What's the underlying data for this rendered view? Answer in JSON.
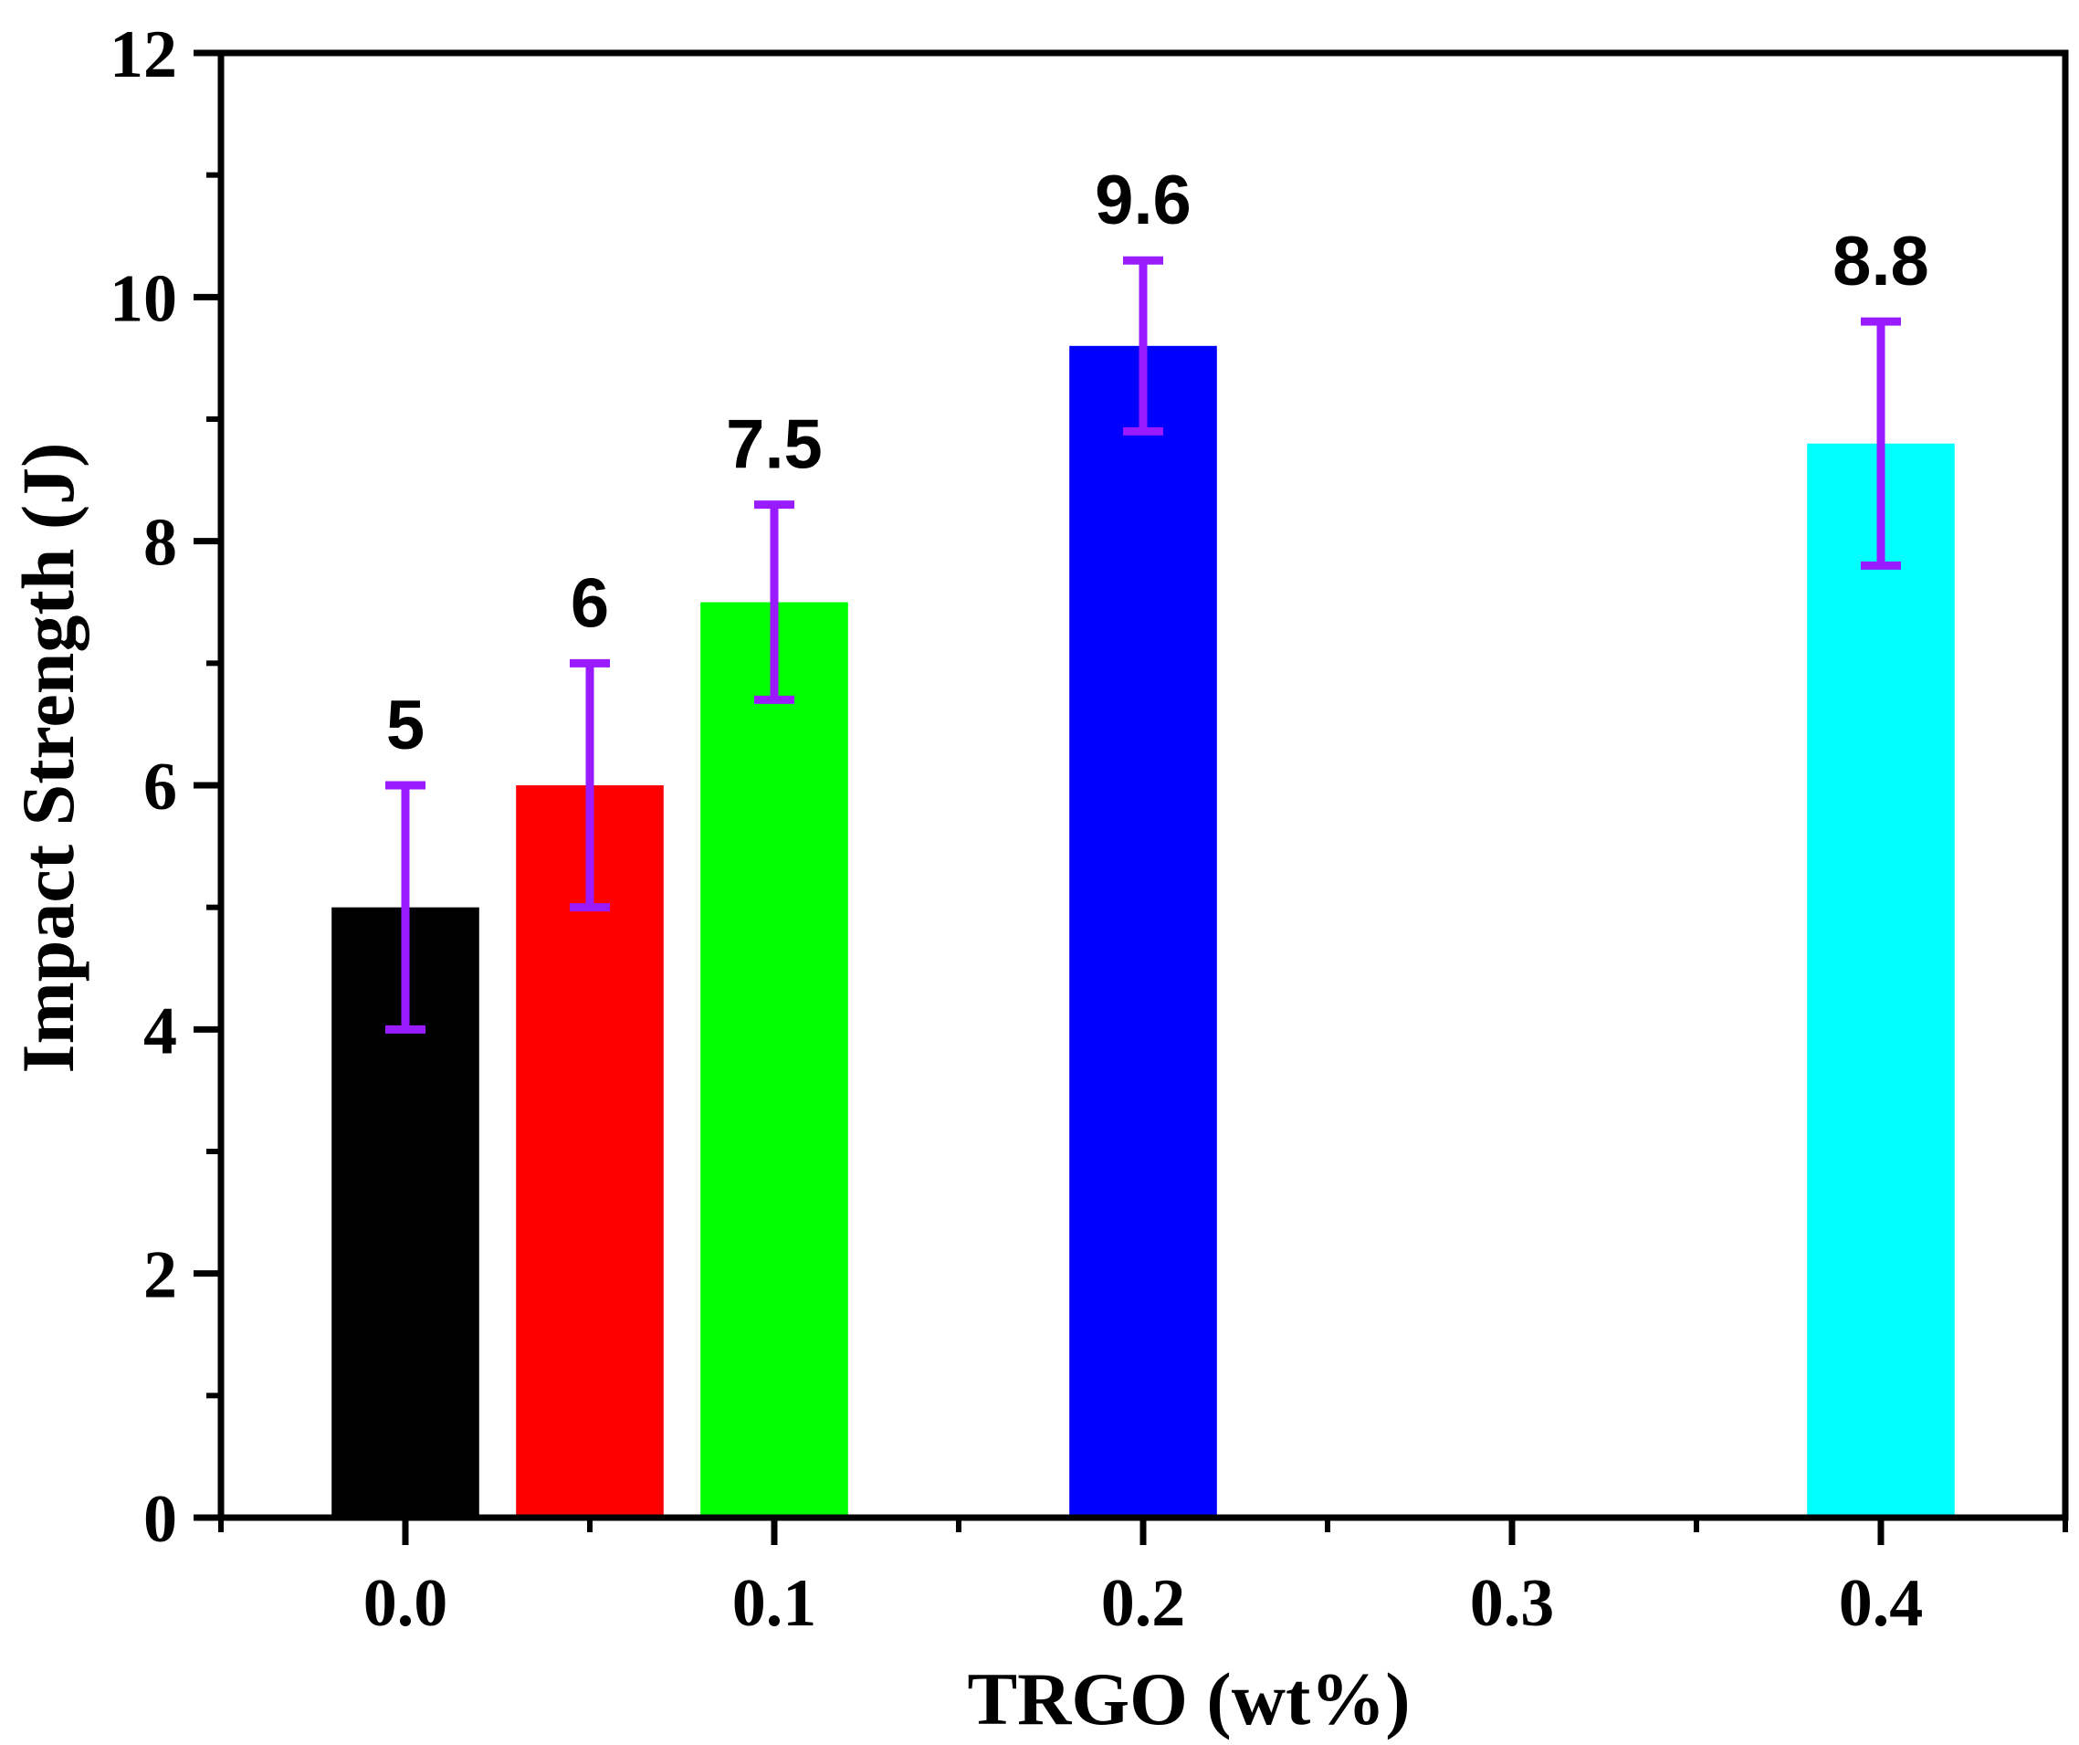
{
  "chart_data": {
    "type": "bar",
    "title": "",
    "xlabel": "TRGO (wt%)",
    "ylabel": "Impact Strength (J)",
    "xlim": [
      -0.05,
      0.45
    ],
    "ylim": [
      0,
      12
    ],
    "x_ticks": [
      0.0,
      0.1,
      0.2,
      0.3,
      0.4
    ],
    "x_tick_labels": [
      "0.0",
      "0.1",
      "0.2",
      "0.3",
      "0.4"
    ],
    "y_ticks": [
      0,
      2,
      4,
      6,
      8,
      10,
      12
    ],
    "y_tick_labels": [
      "0",
      "2",
      "4",
      "6",
      "8",
      "10",
      "12"
    ],
    "bars": [
      {
        "x": 0.0,
        "value": 5.0,
        "error": 1.0,
        "label": "5",
        "color": "#000000"
      },
      {
        "x": 0.05,
        "value": 6.0,
        "error": 1.0,
        "label": "6",
        "color": "#ff0000"
      },
      {
        "x": 0.1,
        "value": 7.5,
        "error": 0.8,
        "label": "7.5",
        "color": "#00ff00"
      },
      {
        "x": 0.2,
        "value": 9.6,
        "error": 0.7,
        "label": "9.6",
        "color": "#0000ff"
      },
      {
        "x": 0.4,
        "value": 8.8,
        "error": 1.0,
        "label": "8.8",
        "color": "#00ffff"
      }
    ],
    "bar_width": 0.04,
    "error_bar_color": "#9a1bff",
    "grid": false,
    "legend": "none"
  }
}
